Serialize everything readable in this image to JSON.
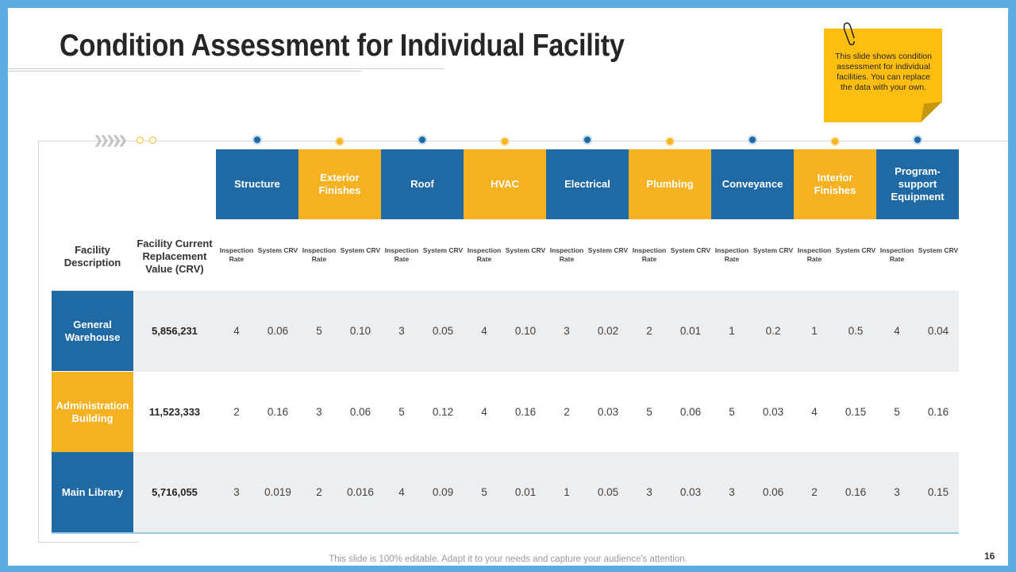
{
  "title": "Condition Assessment for Individual Facility",
  "note": "This slide shows condition assessment for individual facilities. You can replace the data with your own.",
  "table": {
    "facility_header": "Facility Description",
    "crv_header": "Facility Current Replacement Value (CRV)",
    "sub_headers": {
      "rate": "Inspection Rate",
      "crv": "System CRV"
    },
    "categories": [
      {
        "label": "Structure",
        "color": "blue"
      },
      {
        "label": "Exterior Finishes",
        "color": "yellow"
      },
      {
        "label": "Roof",
        "color": "blue"
      },
      {
        "label": "HVAC",
        "color": "yellow"
      },
      {
        "label": "Electrical",
        "color": "blue"
      },
      {
        "label": "Plumbing",
        "color": "yellow"
      },
      {
        "label": "Conveyance",
        "color": "blue"
      },
      {
        "label": "Interior Finishes",
        "color": "yellow"
      },
      {
        "label": "Program-support Equipment",
        "color": "blue"
      }
    ],
    "rows": [
      {
        "facility": "General Warehouse",
        "crv": "5,856,231",
        "color": "blue",
        "values": [
          "4",
          "0.06",
          "5",
          "0.10",
          "3",
          "0.05",
          "4",
          "0.10",
          "3",
          "0.02",
          "2",
          "0.01",
          "1",
          "0.2",
          "1",
          "0.5",
          "4",
          "0.04"
        ]
      },
      {
        "facility": "Administration Building",
        "crv": "11,523,333",
        "color": "yellow",
        "values": [
          "2",
          "0.16",
          "3",
          "0.06",
          "5",
          "0.12",
          "4",
          "0.16",
          "2",
          "0.03",
          "5",
          "0.06",
          "5",
          "0.03",
          "4",
          "0.15",
          "5",
          "0.16"
        ]
      },
      {
        "facility": "Main Library",
        "crv": "5,716,055",
        "color": "blue",
        "values": [
          "3",
          "0.019",
          "2",
          "0.016",
          "4",
          "0.09",
          "5",
          "0.01",
          "1",
          "0.05",
          "3",
          "0.03",
          "3",
          "0.06",
          "2",
          "0.16",
          "3",
          "0.15"
        ]
      }
    ]
  },
  "footer": "This slide is 100% editable. Adapt it to your needs and capture your audience's attention.",
  "page_number": "16",
  "colors": {
    "blue": "#1F6AA5",
    "yellow": "#F6B221",
    "frame": "#5DADE2",
    "row_shade": "#EDEEF0"
  }
}
